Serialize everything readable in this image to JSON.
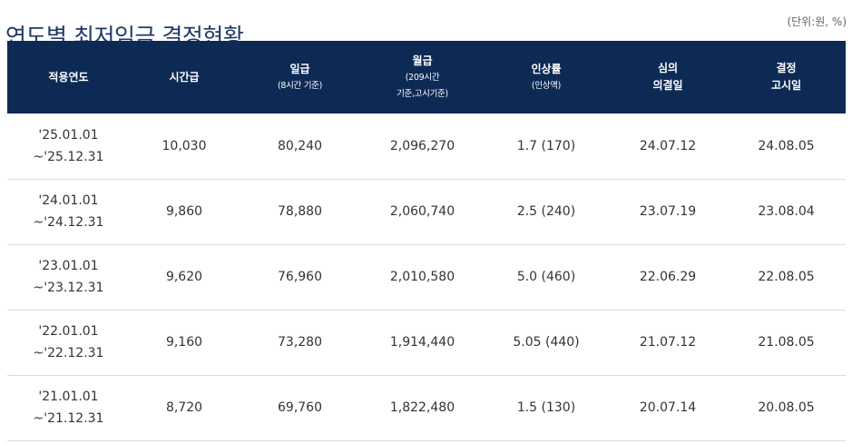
{
  "header": {
    "title": "연도별 최저임금 결정현황",
    "unit": "(단위:원, %)"
  },
  "table": {
    "columns": [
      {
        "lines": [
          "적용연도"
        ],
        "sub": []
      },
      {
        "lines": [
          "시간급"
        ],
        "sub": []
      },
      {
        "lines": [
          "일급"
        ],
        "sub": [
          "(8시간 기준)"
        ]
      },
      {
        "lines": [
          "월급"
        ],
        "sub": [
          "(209시간",
          "기준,고시기준)"
        ]
      },
      {
        "lines": [
          "인상률"
        ],
        "sub": [
          "(인상액)"
        ]
      },
      {
        "lines": [
          "심의",
          "의결일"
        ],
        "sub": []
      },
      {
        "lines": [
          "결정",
          "고시일"
        ],
        "sub": []
      }
    ],
    "rows": [
      {
        "period_start": "'25.01.01",
        "period_end": "~'25.12.31",
        "hourly": "10,030",
        "daily": "80,240",
        "monthly": "2,096,270",
        "increase": "1.7 (170)",
        "decided": "24.07.12",
        "announced": "24.08.05"
      },
      {
        "period_start": "'24.01.01",
        "period_end": "~'24.12.31",
        "hourly": "9,860",
        "daily": "78,880",
        "monthly": "2,060,740",
        "increase": "2.5 (240)",
        "decided": "23.07.19",
        "announced": "23.08.04"
      },
      {
        "period_start": "'23.01.01",
        "period_end": "~'23.12.31",
        "hourly": "9,620",
        "daily": "76,960",
        "monthly": "2,010,580",
        "increase": "5.0 (460)",
        "decided": "22.06.29",
        "announced": "22.08.05"
      },
      {
        "period_start": "'22.01.01",
        "period_end": "~'22.12.31",
        "hourly": "9,160",
        "daily": "73,280",
        "monthly": "1,914,440",
        "increase": "5.05 (440)",
        "decided": "21.07.12",
        "announced": "21.08.05"
      },
      {
        "period_start": "'21.01.01",
        "period_end": "~'21.12.31",
        "hourly": "8,720",
        "daily": "69,760",
        "monthly": "1,822,480",
        "increase": "1.5 (130)",
        "decided": "20.07.14",
        "announced": "20.08.05"
      }
    ]
  },
  "colors": {
    "title": "#1e3a68",
    "header_bg": "#0d2a55",
    "header_text": "#ffffff",
    "row_border": "#dddddd",
    "body_text": "#333333"
  }
}
